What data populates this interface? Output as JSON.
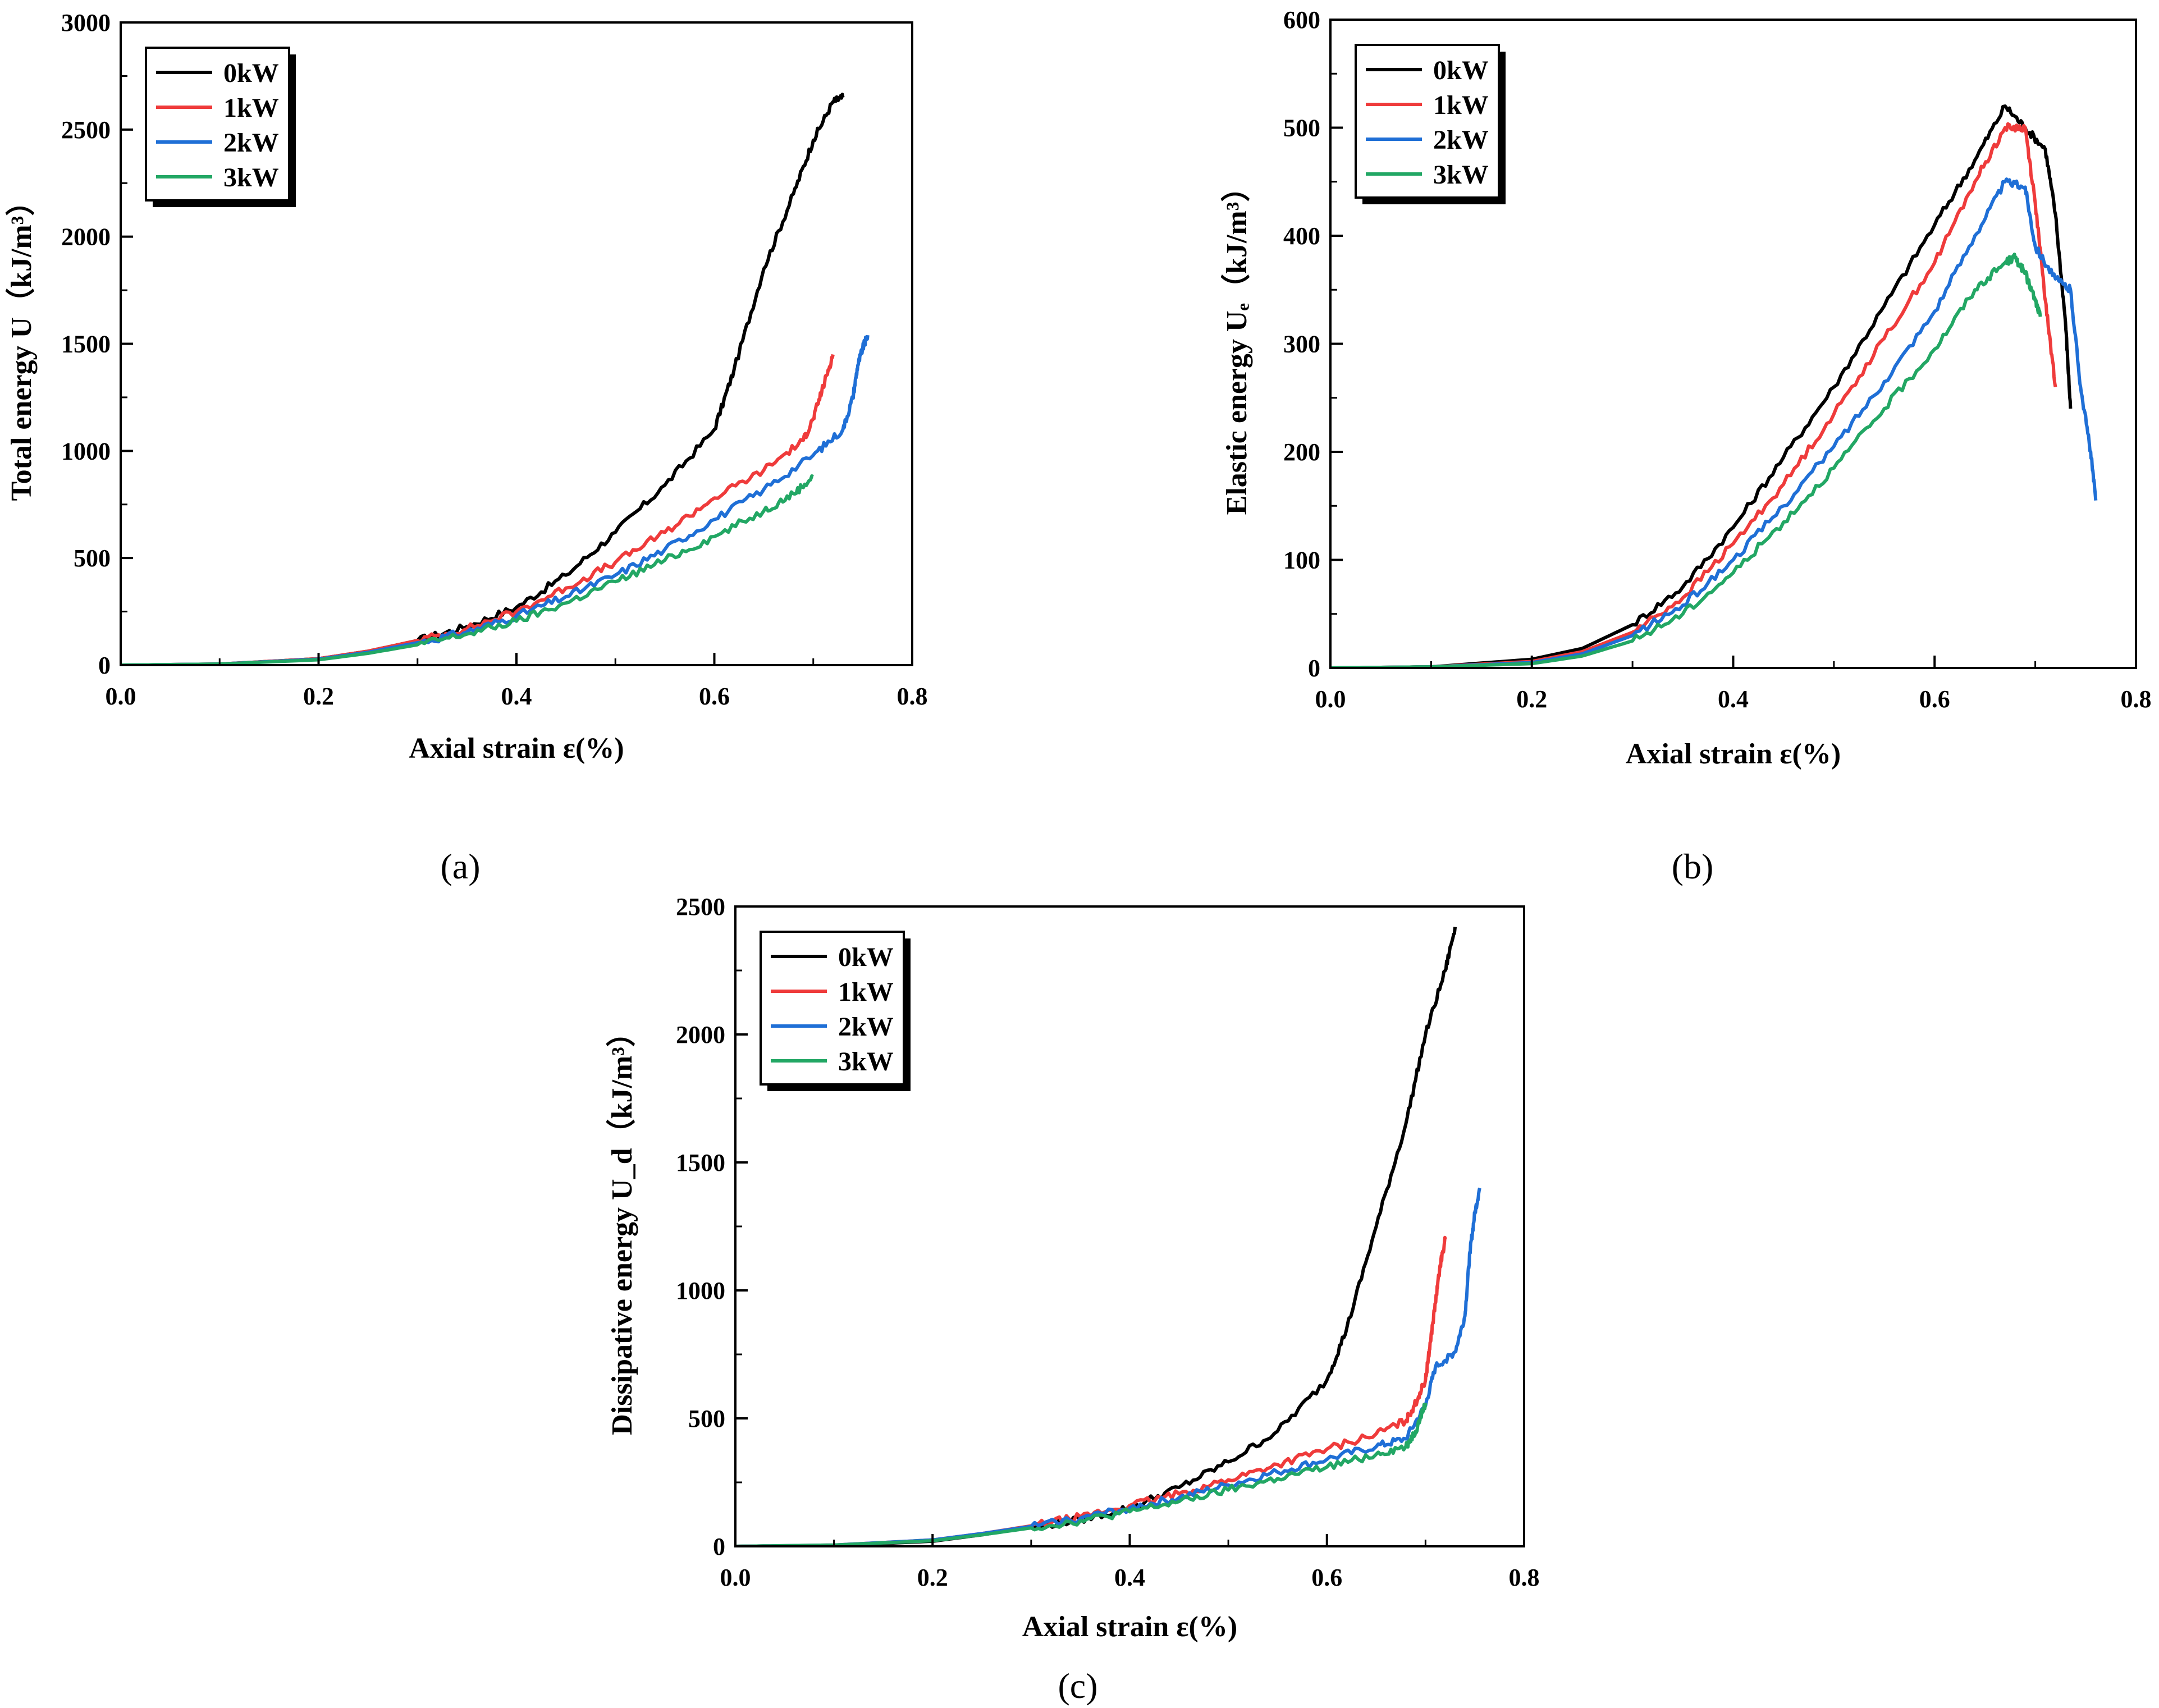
{
  "figure": {
    "panel_labels": [
      "(a)",
      "(b)",
      "(c)"
    ]
  },
  "colors": {
    "0kW": "#000000",
    "1kW": "#ef3b3b",
    "2kW": "#1f6fd6",
    "3kW": "#22a764"
  },
  "chart_data": [
    {
      "type": "line",
      "panel": "(a)",
      "ylabel": "Total energy U（kJ/m³）",
      "xlabel": "Axial strain ε(%)",
      "xlim": [
        0,
        0.8
      ],
      "ylim": [
        0,
        3000
      ],
      "xticks": [
        "0.0",
        "0.2",
        "0.4",
        "0.6",
        "0.8"
      ],
      "yticks": [
        "0",
        "500",
        "1000",
        "1500",
        "2000",
        "2500",
        "3000"
      ],
      "legend": [
        "0kW",
        "1kW",
        "2kW",
        "3kW"
      ],
      "legend_position": "top-left",
      "series": [
        {
          "name": "0kW",
          "x": [
            0,
            0.1,
            0.2,
            0.25,
            0.3,
            0.35,
            0.4,
            0.45,
            0.5,
            0.55,
            0.6,
            0.62,
            0.65,
            0.68,
            0.7,
            0.72,
            0.73
          ],
          "y": [
            0,
            5,
            30,
            65,
            115,
            180,
            270,
            420,
            620,
            840,
            1100,
            1380,
            1850,
            2200,
            2450,
            2630,
            2650
          ]
        },
        {
          "name": "1kW",
          "x": [
            0,
            0.1,
            0.2,
            0.25,
            0.3,
            0.35,
            0.4,
            0.45,
            0.5,
            0.55,
            0.6,
            0.65,
            0.69,
            0.7,
            0.71,
            0.72
          ],
          "y": [
            0,
            5,
            30,
            65,
            115,
            170,
            250,
            360,
            480,
            620,
            780,
            910,
            1050,
            1150,
            1300,
            1450
          ]
        },
        {
          "name": "2kW",
          "x": [
            0,
            0.1,
            0.2,
            0.25,
            0.3,
            0.35,
            0.4,
            0.45,
            0.5,
            0.55,
            0.6,
            0.65,
            0.7,
            0.73,
            0.74,
            0.745,
            0.75,
            0.755
          ],
          "y": [
            0,
            5,
            28,
            60,
            105,
            155,
            230,
            320,
            420,
            540,
            680,
            820,
            980,
            1100,
            1250,
            1400,
            1480,
            1540
          ]
        },
        {
          "name": "3kW",
          "x": [
            0,
            0.1,
            0.2,
            0.25,
            0.3,
            0.35,
            0.4,
            0.45,
            0.5,
            0.55,
            0.6,
            0.65,
            0.68,
            0.7
          ],
          "y": [
            0,
            5,
            25,
            55,
            95,
            145,
            205,
            290,
            390,
            490,
            600,
            720,
            800,
            880
          ]
        }
      ]
    },
    {
      "type": "line",
      "panel": "(b)",
      "ylabel": "Elastic energy Uₑ（kJ/m³）",
      "xlabel": "Axial strain ε(%)",
      "xlim": [
        0,
        0.8
      ],
      "ylim": [
        0,
        600
      ],
      "xticks": [
        "0.0",
        "0.2",
        "0.4",
        "0.6",
        "0.8"
      ],
      "yticks": [
        "0",
        "100",
        "200",
        "300",
        "400",
        "500",
        "600"
      ],
      "legend": [
        "0kW",
        "1kW",
        "2kW",
        "3kW"
      ],
      "legend_position": "top-left",
      "series": [
        {
          "name": "0kW",
          "x": [
            0,
            0.1,
            0.2,
            0.25,
            0.3,
            0.35,
            0.4,
            0.45,
            0.5,
            0.55,
            0.6,
            0.64,
            0.67,
            0.69,
            0.71,
            0.72,
            0.73,
            0.735
          ],
          "y": [
            0,
            1,
            8,
            18,
            40,
            75,
            130,
            195,
            260,
            335,
            410,
            470,
            520,
            500,
            480,
            420,
            320,
            240
          ]
        },
        {
          "name": "1kW",
          "x": [
            0,
            0.1,
            0.2,
            0.25,
            0.3,
            0.35,
            0.4,
            0.45,
            0.5,
            0.55,
            0.6,
            0.64,
            0.67,
            0.69,
            0.7,
            0.71,
            0.72
          ],
          "y": [
            0,
            1,
            6,
            15,
            33,
            65,
            115,
            170,
            235,
            305,
            375,
            450,
            500,
            500,
            430,
            340,
            260
          ]
        },
        {
          "name": "2kW",
          "x": [
            0,
            0.1,
            0.2,
            0.25,
            0.3,
            0.35,
            0.4,
            0.45,
            0.5,
            0.55,
            0.6,
            0.64,
            0.67,
            0.69,
            0.7,
            0.72,
            0.735,
            0.745,
            0.755,
            0.76
          ],
          "y": [
            0,
            1,
            5,
            13,
            30,
            58,
            100,
            150,
            205,
            265,
            330,
            400,
            450,
            445,
            390,
            360,
            350,
            260,
            200,
            155
          ]
        },
        {
          "name": "3kW",
          "x": [
            0,
            0.1,
            0.2,
            0.25,
            0.3,
            0.35,
            0.4,
            0.45,
            0.5,
            0.55,
            0.6,
            0.64,
            0.67,
            0.68,
            0.69,
            0.7,
            0.705
          ],
          "y": [
            0,
            1,
            4,
            11,
            25,
            50,
            88,
            135,
            185,
            240,
            295,
            350,
            375,
            380,
            365,
            340,
            325
          ]
        }
      ]
    },
    {
      "type": "line",
      "panel": "(c)",
      "ylabel": "Dissipative  energy U_d（kJ/m³）",
      "xlabel": "Axial strain ε(%)",
      "xlim": [
        0,
        0.8
      ],
      "ylim": [
        0,
        2500
      ],
      "xticks": [
        "0.0",
        "0.2",
        "0.4",
        "0.6",
        "0.8"
      ],
      "yticks": [
        "0",
        "500",
        "1000",
        "1500",
        "2000",
        "2500"
      ],
      "legend": [
        "0kW",
        "1kW",
        "2kW",
        "3kW"
      ],
      "legend_position": "top-left",
      "series": [
        {
          "name": "0kW",
          "x": [
            0,
            0.1,
            0.2,
            0.25,
            0.3,
            0.35,
            0.4,
            0.45,
            0.5,
            0.55,
            0.6,
            0.62,
            0.65,
            0.68,
            0.7,
            0.72,
            0.73
          ],
          "y": [
            0,
            3,
            20,
            45,
            75,
            105,
            150,
            230,
            330,
            450,
            650,
            850,
            1250,
            1650,
            2000,
            2250,
            2420
          ]
        },
        {
          "name": "1kW",
          "x": [
            0,
            0.1,
            0.2,
            0.25,
            0.3,
            0.35,
            0.4,
            0.45,
            0.5,
            0.55,
            0.6,
            0.65,
            0.68,
            0.69,
            0.7,
            0.705,
            0.71,
            0.715,
            0.72
          ],
          "y": [
            0,
            5,
            25,
            50,
            80,
            115,
            160,
            205,
            260,
            320,
            380,
            440,
            490,
            560,
            650,
            800,
            950,
            1100,
            1200
          ]
        },
        {
          "name": "2kW",
          "x": [
            0,
            0.1,
            0.2,
            0.25,
            0.3,
            0.35,
            0.4,
            0.45,
            0.5,
            0.55,
            0.6,
            0.65,
            0.68,
            0.7,
            0.71,
            0.73,
            0.74,
            0.745,
            0.75,
            0.755
          ],
          "y": [
            0,
            5,
            25,
            50,
            78,
            110,
            150,
            190,
            240,
            290,
            340,
            390,
            420,
            550,
            700,
            760,
            900,
            1150,
            1300,
            1400
          ]
        },
        {
          "name": "3kW",
          "x": [
            0,
            0.1,
            0.2,
            0.25,
            0.3,
            0.35,
            0.4,
            0.45,
            0.5,
            0.55,
            0.6,
            0.65,
            0.68,
            0.69,
            0.7
          ],
          "y": [
            0,
            5,
            22,
            45,
            72,
            100,
            135,
            175,
            220,
            265,
            310,
            360,
            390,
            450,
            560
          ]
        }
      ]
    }
  ]
}
